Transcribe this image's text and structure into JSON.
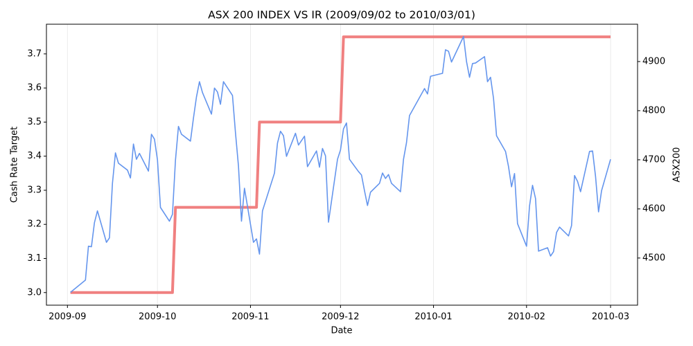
{
  "chart_data": {
    "type": "line",
    "title": "ASX 200 INDEX VS IR (2009/09/02 to 2010/03/01)",
    "xlabel": "Date",
    "ylabel": "Cash Rate Target",
    "y2label": "ASX200",
    "grid": "x",
    "xlim": [
      "2009-08-25",
      "2010-03-10"
    ],
    "xticks": [
      {
        "value": "2009-09-01",
        "label": "2009-09"
      },
      {
        "value": "2009-10-01",
        "label": "2009-10"
      },
      {
        "value": "2009-11-01",
        "label": "2009-11"
      },
      {
        "value": "2009-12-01",
        "label": "2009-12"
      },
      {
        "value": "2010-01-01",
        "label": "2010-01"
      },
      {
        "value": "2010-02-01",
        "label": "2010-02"
      },
      {
        "value": "2010-03-01",
        "label": "2010-03"
      }
    ],
    "ylim": [
      2.963,
      3.787
    ],
    "yticks": [
      {
        "value": 3,
        "label": "3.0"
      },
      3.1,
      3.2,
      3.3,
      3.4,
      3.5,
      3.6,
      3.7
    ],
    "y2lim": [
      4404,
      4976
    ],
    "y2ticks": [
      4500,
      4600,
      4700,
      4800,
      4900
    ],
    "series": [
      {
        "color": "#f08080",
        "width": 4,
        "x": [
          "2009-09-02",
          "2009-10-06",
          "2009-10-07",
          "2009-11-03",
          "2009-11-04",
          "2009-12-01",
          "2009-12-02",
          "2010-03-01"
        ],
        "values": [
          3.0,
          3.0,
          3.25,
          3.25,
          3.5,
          3.5,
          3.75,
          3.75
        ]
      },
      {
        "color": "#6495ed",
        "width": 1.6,
        "axis": "y2",
        "x": [
          "2009-09-02",
          "2009-09-07",
          "2009-09-08",
          "2009-09-09",
          "2009-09-10",
          "2009-09-11",
          "2009-09-14",
          "2009-09-15",
          "2009-09-16",
          "2009-09-17",
          "2009-09-18",
          "2009-09-21",
          "2009-09-22",
          "2009-09-23",
          "2009-09-24",
          "2009-09-25",
          "2009-09-28",
          "2009-09-29",
          "2009-09-30",
          "2009-10-01",
          "2009-10-02",
          "2009-10-05",
          "2009-10-06",
          "2009-10-07",
          "2009-10-08",
          "2009-10-09",
          "2009-10-12",
          "2009-10-13",
          "2009-10-14",
          "2009-10-15",
          "2009-10-16",
          "2009-10-19",
          "2009-10-20",
          "2009-10-21",
          "2009-10-22",
          "2009-10-23",
          "2009-10-26",
          "2009-10-27",
          "2009-10-28",
          "2009-10-29",
          "2009-10-30",
          "2009-11-02",
          "2009-11-03",
          "2009-11-04",
          "2009-11-05",
          "2009-11-09",
          "2009-11-10",
          "2009-11-11",
          "2009-11-12",
          "2009-11-13",
          "2009-11-16",
          "2009-11-17",
          "2009-11-19",
          "2009-11-20",
          "2009-11-23",
          "2009-11-24",
          "2009-11-25",
          "2009-11-26",
          "2009-11-27",
          "2009-11-30",
          "2009-12-01",
          "2009-12-02",
          "2009-12-03",
          "2009-12-04",
          "2009-12-07",
          "2009-12-08",
          "2009-12-09",
          "2009-12-10",
          "2009-12-11",
          "2009-12-14",
          "2009-12-15",
          "2009-12-16",
          "2009-12-17",
          "2009-12-18",
          "2009-12-21",
          "2009-12-22",
          "2009-12-23",
          "2009-12-24",
          "2009-12-29",
          "2009-12-30",
          "2009-12-31",
          "2010-01-04",
          "2010-01-05",
          "2010-01-06",
          "2010-01-07",
          "2010-01-11",
          "2010-01-12",
          "2010-01-13",
          "2010-01-14",
          "2010-01-15",
          "2010-01-18",
          "2010-01-19",
          "2010-01-20",
          "2010-01-21",
          "2010-01-22",
          "2010-01-25",
          "2010-01-26",
          "2010-01-27",
          "2010-01-28",
          "2010-01-29",
          "2010-02-01",
          "2010-02-02",
          "2010-02-03",
          "2010-02-04",
          "2010-02-05",
          "2010-02-08",
          "2010-02-09",
          "2010-02-10",
          "2010-02-11",
          "2010-02-12",
          "2010-02-15",
          "2010-02-16",
          "2010-02-17",
          "2010-02-18",
          "2010-02-19",
          "2010-02-22",
          "2010-02-23",
          "2010-02-24",
          "2010-02-25",
          "2010-02-26",
          "2010-03-01"
        ],
        "values": [
          4430,
          4455,
          4524,
          4523,
          4572,
          4596,
          4532,
          4541,
          4652,
          4714,
          4693,
          4679,
          4663,
          4732,
          4701,
          4713,
          4677,
          4752,
          4742,
          4700,
          4603,
          4575,
          4589,
          4699,
          4768,
          4752,
          4738,
          4785,
          4828,
          4859,
          4837,
          4793,
          4846,
          4838,
          4813,
          4859,
          4831,
          4755,
          4687,
          4575,
          4642,
          4532,
          4539,
          4508,
          4596,
          4673,
          4734,
          4758,
          4749,
          4707,
          4754,
          4730,
          4748,
          4686,
          4718,
          4685,
          4723,
          4708,
          4573,
          4701,
          4720,
          4763,
          4775,
          4701,
          4676,
          4669,
          4637,
          4607,
          4634,
          4652,
          4673,
          4662,
          4670,
          4652,
          4635,
          4701,
          4735,
          4790,
          4845,
          4834,
          4870,
          4876,
          4924,
          4921,
          4899,
          4951,
          4900,
          4868,
          4896,
          4897,
          4910,
          4859,
          4868,
          4825,
          4749,
          4717,
          4686,
          4645,
          4672,
          4570,
          4524,
          4606,
          4648,
          4621,
          4514,
          4521,
          4504,
          4513,
          4552,
          4563,
          4545,
          4566,
          4668,
          4656,
          4635,
          4717,
          4718,
          4666,
          4594,
          4637,
          4701
        ]
      }
    ]
  }
}
